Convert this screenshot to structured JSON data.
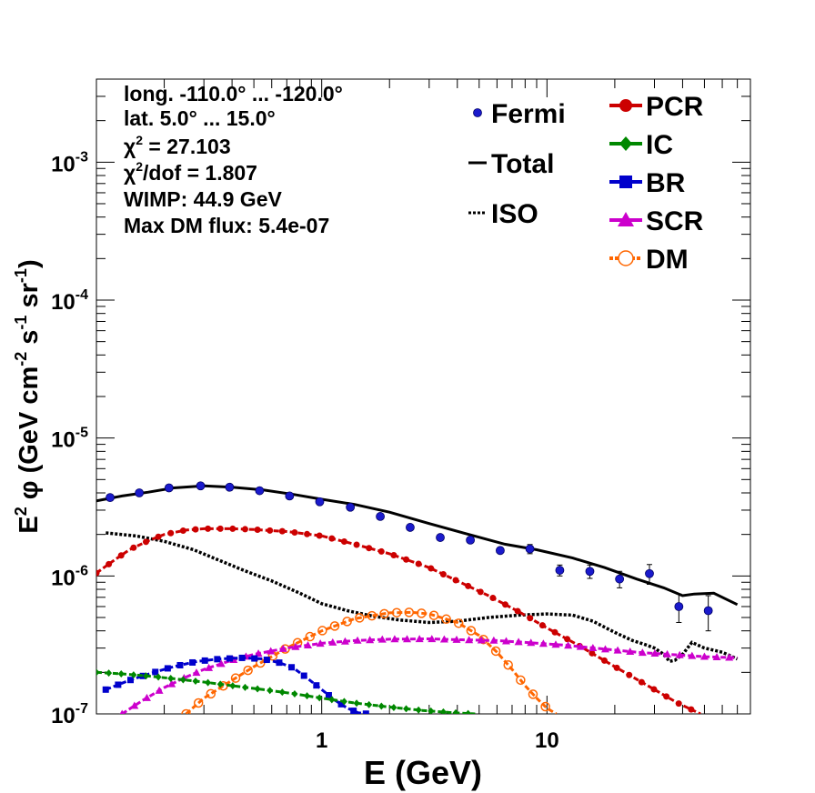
{
  "chart_data": {
    "type": "scatter",
    "xscale": "log",
    "yscale": "log",
    "xlim": [
      0.1,
      80
    ],
    "ylim": [
      1e-07,
      0.004
    ],
    "xlabel": "E (GeV)",
    "ylabel": {
      "main": "E",
      "sup1": "2",
      "mid": " φ (GeV cm",
      "sup2": "-2",
      "mid2": " s",
      "sup3": "-1",
      "mid3": " sr",
      "sup4": "-1",
      "end": ")"
    },
    "x_ticks": [
      {
        "value": 1,
        "label": "1"
      },
      {
        "value": 10,
        "label": "10"
      }
    ],
    "y_ticks": [
      {
        "value": 1e-07,
        "base": "10",
        "exp": "-7"
      },
      {
        "value": 1e-06,
        "base": "10",
        "exp": "-6"
      },
      {
        "value": 1e-05,
        "base": "10",
        "exp": "-5"
      },
      {
        "value": 0.0001,
        "base": "10",
        "exp": "-4"
      },
      {
        "value": 0.001,
        "base": "10",
        "exp": "-3"
      }
    ],
    "info": [
      {
        "text": "long. -110.0° ... -120.0°"
      },
      {
        "text": "lat. 5.0° ... 15.0°"
      },
      {
        "pre": "χ",
        "sup": "2",
        "post": " = 27.103"
      },
      {
        "pre": "χ",
        "sup": "2",
        "post": "/dof = 1.807"
      },
      {
        "text": "WIMP: 44.9 GeV"
      },
      {
        "text": "Max DM flux: 5.4e-07"
      }
    ],
    "legend_left": [
      {
        "label": "Fermi",
        "color": "#1a1acc",
        "kind": "point"
      },
      {
        "label": "Total",
        "color": "#000000",
        "kind": "line"
      },
      {
        "label": "ISO",
        "color": "#000000",
        "kind": "dotted"
      }
    ],
    "legend_right": [
      {
        "label": "PCR",
        "color": "#cc0000",
        "kind": "circle"
      },
      {
        "label": "IC",
        "color": "#008800",
        "kind": "diamond"
      },
      {
        "label": "BR",
        "color": "#0000cc",
        "kind": "square"
      },
      {
        "label": "SCR",
        "color": "#cc00cc",
        "kind": "triangle"
      },
      {
        "label": "DM",
        "color": "#ff6600",
        "kind": "opencircle"
      }
    ],
    "fermi": {
      "name": "Fermi",
      "color": "#1a1acc",
      "points": [
        {
          "x": 0.115,
          "y": 3.7e-06,
          "err": 0
        },
        {
          "x": 0.155,
          "y": 4e-06,
          "err": 0
        },
        {
          "x": 0.21,
          "y": 4.35e-06,
          "err": 0
        },
        {
          "x": 0.29,
          "y": 4.5e-06,
          "err": 0
        },
        {
          "x": 0.39,
          "y": 4.4e-06,
          "err": 0
        },
        {
          "x": 0.53,
          "y": 4.15e-06,
          "err": 0
        },
        {
          "x": 0.72,
          "y": 3.8e-06,
          "err": 0
        },
        {
          "x": 0.98,
          "y": 3.45e-06,
          "err": 0
        },
        {
          "x": 1.34,
          "y": 3.15e-06,
          "err": 0
        },
        {
          "x": 1.82,
          "y": 2.7e-06,
          "err": 0
        },
        {
          "x": 2.47,
          "y": 2.25e-06,
          "err": 0
        },
        {
          "x": 3.36,
          "y": 1.9e-06,
          "err": 0
        },
        {
          "x": 4.57,
          "y": 1.82e-06,
          "err": 5e-08
        },
        {
          "x": 6.2,
          "y": 1.53e-06,
          "err": 8e-08
        },
        {
          "x": 8.4,
          "y": 1.57e-06,
          "err": 1.2e-07
        },
        {
          "x": 11.4,
          "y": 1.1e-06,
          "err": 1e-07
        },
        {
          "x": 15.5,
          "y": 1.08e-06,
          "err": 1.2e-07
        },
        {
          "x": 21,
          "y": 9.5e-07,
          "err": 1.3e-07
        },
        {
          "x": 28.5,
          "y": 1.04e-06,
          "err": 1.7e-07
        },
        {
          "x": 38.5,
          "y": 6e-07,
          "err": 1.4e-07
        },
        {
          "x": 52,
          "y": 5.6e-07,
          "err": 1.6e-07
        }
      ]
    },
    "series": [
      {
        "name": "Total",
        "color": "#000000",
        "style": "line",
        "width": 3,
        "x": [
          0.1,
          0.13,
          0.17,
          0.22,
          0.3,
          0.4,
          0.55,
          0.75,
          1.0,
          1.4,
          2.0,
          3.0,
          4.5,
          6.5,
          9.0,
          13,
          18,
          25,
          33,
          40,
          45,
          55,
          70
        ],
        "y": [
          3.5e-06,
          3.8e-06,
          4.05e-06,
          4.35e-06,
          4.5e-06,
          4.4e-06,
          4.2e-06,
          3.9e-06,
          3.6e-06,
          3.3e-06,
          2.9e-06,
          2.4e-06,
          2e-06,
          1.7e-06,
          1.55e-06,
          1.35e-06,
          1.15e-06,
          9.5e-07,
          8.2e-07,
          7.2e-07,
          7.4e-07,
          7.5e-07,
          6.2e-07
        ]
      },
      {
        "name": "ISO",
        "color": "#000000",
        "style": "dotted",
        "width": 3.5,
        "x": [
          0.11,
          0.15,
          0.2,
          0.27,
          0.35,
          0.45,
          0.6,
          0.8,
          1.0,
          1.3,
          1.7,
          2.2,
          3.0,
          4.0,
          5.5,
          7.5,
          10,
          13,
          16,
          20,
          24,
          27,
          30,
          33,
          35,
          37,
          40,
          44,
          50,
          60,
          70
        ],
        "y": [
          2.05e-06,
          1.95e-06,
          1.78e-06,
          1.55e-06,
          1.3e-06,
          1.1e-06,
          9.2e-07,
          7.5e-07,
          6.3e-07,
          5.6e-07,
          5.1e-07,
          4.8e-07,
          4.6e-07,
          4.7e-07,
          5e-07,
          5.2e-07,
          5.3e-07,
          5.2e-07,
          4.7e-07,
          3.9e-07,
          3.4e-07,
          3.2e-07,
          3e-07,
          2.7e-07,
          2.4e-07,
          2.45e-07,
          2.7e-07,
          3.3e-07,
          3e-07,
          2.8e-07,
          2.5e-07
        ]
      },
      {
        "name": "PCR",
        "color": "#cc0000",
        "style": "marker",
        "marker": "circle",
        "width": 3,
        "x": [
          0.1,
          0.12,
          0.14,
          0.17,
          0.2,
          0.25,
          0.3,
          0.4,
          0.5,
          0.7,
          1.0,
          1.4,
          2.0,
          3.0,
          4.0,
          5.5,
          7.5,
          10,
          14,
          20,
          28,
          38,
          48
        ],
        "y": [
          1.05e-06,
          1.3e-06,
          1.55e-06,
          1.8e-06,
          2e-06,
          2.15e-06,
          2.2e-06,
          2.2e-06,
          2.17e-06,
          2.1e-06,
          1.95e-06,
          1.7e-06,
          1.45e-06,
          1.15e-06,
          9.2e-07,
          7.2e-07,
          5.5e-07,
          4.2e-07,
          3.1e-07,
          2.2e-07,
          1.6e-07,
          1.2e-07,
          1e-07
        ]
      },
      {
        "name": "DM",
        "color": "#ff6600",
        "style": "marker",
        "marker": "opencircle",
        "width": 3,
        "x": [
          0.25,
          0.3,
          0.4,
          0.5,
          0.7,
          1.0,
          1.4,
          2.0,
          2.5,
          3.0,
          4.0,
          5.0,
          6.0,
          7.0,
          8.0,
          9.0,
          10,
          11
        ],
        "y": [
          1e-07,
          1.3e-07,
          1.75e-07,
          2.2e-07,
          3e-07,
          4e-07,
          4.9e-07,
          5.4e-07,
          5.45e-07,
          5.3e-07,
          4.6e-07,
          3.7e-07,
          2.8e-07,
          2.1e-07,
          1.6e-07,
          1.3e-07,
          1.1e-07,
          1e-07
        ]
      },
      {
        "name": "SCR",
        "color": "#cc00cc",
        "style": "marker",
        "marker": "triangle",
        "width": 3,
        "x": [
          0.13,
          0.16,
          0.2,
          0.25,
          0.3,
          0.4,
          0.5,
          0.7,
          1.0,
          1.4,
          2.0,
          3.0,
          4.0,
          6.0,
          8.0,
          12,
          18,
          25,
          35,
          50,
          70
        ],
        "y": [
          1e-07,
          1.25e-07,
          1.55e-07,
          1.85e-07,
          2.1e-07,
          2.45e-07,
          2.7e-07,
          3e-07,
          3.25e-07,
          3.4e-07,
          3.48e-07,
          3.5e-07,
          3.45e-07,
          3.4e-07,
          3.3e-07,
          3.15e-07,
          2.95e-07,
          2.8e-07,
          2.7e-07,
          2.6e-07,
          2.55e-07
        ]
      },
      {
        "name": "BR",
        "color": "#0000cc",
        "style": "marker",
        "marker": "square",
        "width": 3,
        "x": [
          0.11,
          0.14,
          0.18,
          0.22,
          0.28,
          0.35,
          0.45,
          0.55,
          0.65,
          0.75,
          0.85,
          1.0,
          1.15,
          1.3,
          1.45,
          1.6
        ],
        "y": [
          1.5e-07,
          1.75e-07,
          2e-07,
          2.2e-07,
          2.4e-07,
          2.5e-07,
          2.55e-07,
          2.5e-07,
          2.35e-07,
          2.15e-07,
          1.85e-07,
          1.5e-07,
          1.25e-07,
          1.1e-07,
          1.02e-07,
          1e-07
        ]
      },
      {
        "name": "IC",
        "color": "#008800",
        "style": "marker",
        "marker": "diamond",
        "width": 3,
        "x": [
          0.1,
          0.13,
          0.17,
          0.22,
          0.3,
          0.4,
          0.55,
          0.75,
          1.0,
          1.4,
          2.0,
          2.8,
          3.8,
          4.8
        ],
        "y": [
          2e-07,
          1.95e-07,
          1.88e-07,
          1.8e-07,
          1.7e-07,
          1.6e-07,
          1.5e-07,
          1.4e-07,
          1.3e-07,
          1.2e-07,
          1.12e-07,
          1.06e-07,
          1.02e-07,
          1e-07
        ]
      }
    ]
  }
}
